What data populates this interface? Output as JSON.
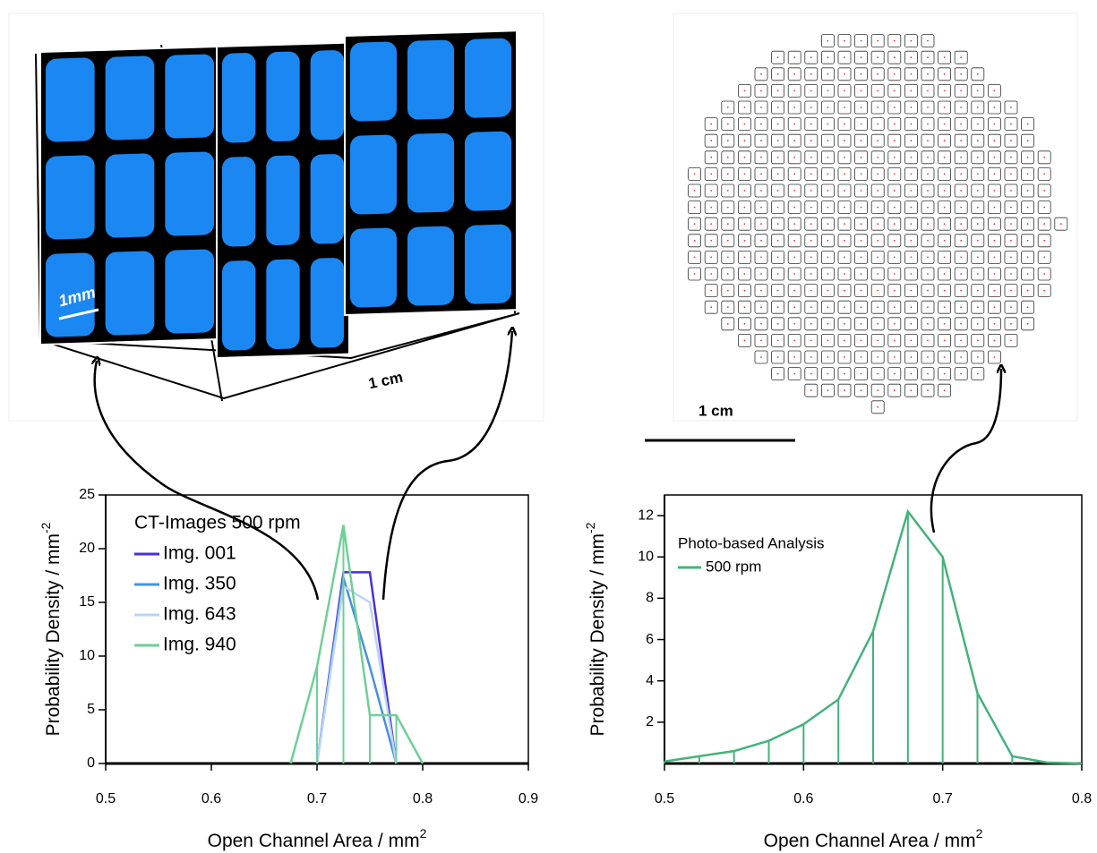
{
  "chart_data": [
    {
      "type": "line",
      "xlabel": "Open Channel Area / mm",
      "xlabel_sup": "2",
      "ylabel": "Probability Density / mm",
      "ylabel_sup": "-2",
      "legend_title": "CT-Images 500 rpm",
      "legend": "upper left",
      "xlim": [
        0.5,
        0.9
      ],
      "xticks": [
        0.5,
        0.6,
        0.7,
        0.8,
        0.9
      ],
      "ylim": [
        0,
        25
      ],
      "yticks": [
        0,
        5,
        10,
        15,
        20,
        25
      ],
      "series": [
        {
          "name": "Img. 001",
          "color": "#4b2fd8",
          "x": [
            0.7,
            0.725,
            0.75,
            0.775
          ],
          "values": [
            0,
            17.8,
            17.8,
            0
          ]
        },
        {
          "name": "Img. 350",
          "color": "#4a90e2",
          "x": [
            0.7,
            0.725,
            0.75,
            0.775
          ],
          "values": [
            0,
            17.3,
            9,
            0
          ]
        },
        {
          "name": "Img. 643",
          "color": "#b9d5f3",
          "x": [
            0.7,
            0.725,
            0.75,
            0.775
          ],
          "values": [
            0,
            16.5,
            15,
            0
          ]
        },
        {
          "name": "Img. 940",
          "color": "#6fcf97",
          "droplines": true,
          "x": [
            0.675,
            0.7,
            0.725,
            0.75,
            0.775,
            0.8
          ],
          "values": [
            0,
            9,
            22.2,
            4.5,
            4.5,
            0
          ]
        }
      ]
    },
    {
      "type": "line",
      "xlabel": "Open Channel Area / mm",
      "xlabel_sup": "2",
      "ylabel": "Probability Density / mm",
      "ylabel_sup": "-2",
      "legend_title": "Photo-based Analysis",
      "legend": "upper left",
      "xlim": [
        0.5,
        0.8
      ],
      "xticks": [
        0.5,
        0.6,
        0.7,
        0.8
      ],
      "ylim": [
        0,
        13
      ],
      "yticks": [
        2,
        4,
        6,
        8,
        10,
        12
      ],
      "series": [
        {
          "name": "500 rpm",
          "color": "#45b27a",
          "droplines": true,
          "x": [
            0.5,
            0.525,
            0.55,
            0.575,
            0.6,
            0.625,
            0.65,
            0.675,
            0.7,
            0.725,
            0.75,
            0.775,
            0.8
          ],
          "values": [
            0.1,
            0.35,
            0.6,
            1.1,
            1.9,
            3.1,
            6.4,
            12.2,
            10,
            3.4,
            0.35,
            0.05,
            0
          ]
        }
      ]
    }
  ],
  "images": {
    "ct_scale_bar": "1mm",
    "ct_width": "1 cm",
    "photo_scale_bar": "1 cm"
  }
}
